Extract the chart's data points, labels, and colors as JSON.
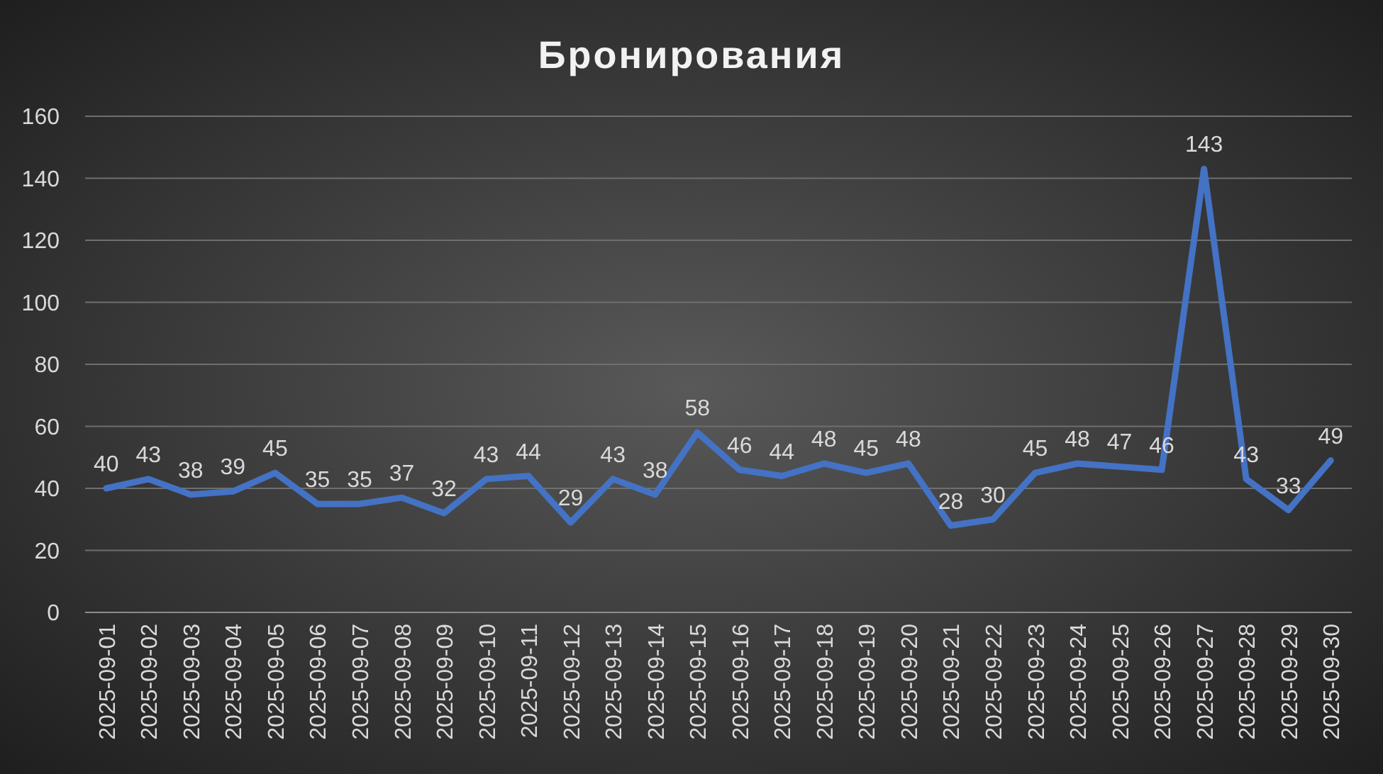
{
  "chart_data": {
    "type": "line",
    "title": "Бронирования",
    "categories": [
      "2025-09-01",
      "2025-09-02",
      "2025-09-03",
      "2025-09-04",
      "2025-09-05",
      "2025-09-06",
      "2025-09-07",
      "2025-09-08",
      "2025-09-09",
      "2025-09-10",
      "2025-09-11",
      "2025-09-12",
      "2025-09-13",
      "2025-09-14",
      "2025-09-15",
      "2025-09-16",
      "2025-09-17",
      "2025-09-18",
      "2025-09-19",
      "2025-09-20",
      "2025-09-21",
      "2025-09-22",
      "2025-09-23",
      "2025-09-24",
      "2025-09-25",
      "2025-09-26",
      "2025-09-27",
      "2025-09-28",
      "2025-09-29",
      "2025-09-30"
    ],
    "series": [
      {
        "color": "#4472c4",
        "values": [
          40,
          43,
          38,
          39,
          45,
          35,
          35,
          37,
          32,
          43,
          44,
          29,
          43,
          38,
          58,
          46,
          44,
          48,
          45,
          48,
          28,
          30,
          45,
          48,
          47,
          46,
          143,
          43,
          33,
          49
        ]
      }
    ],
    "ylim": [
      0,
      160
    ],
    "yticks": [
      0,
      20,
      40,
      60,
      80,
      100,
      120,
      140,
      160
    ],
    "grid": "y",
    "data_labels": true,
    "marker": "none",
    "line_style": "solid"
  }
}
